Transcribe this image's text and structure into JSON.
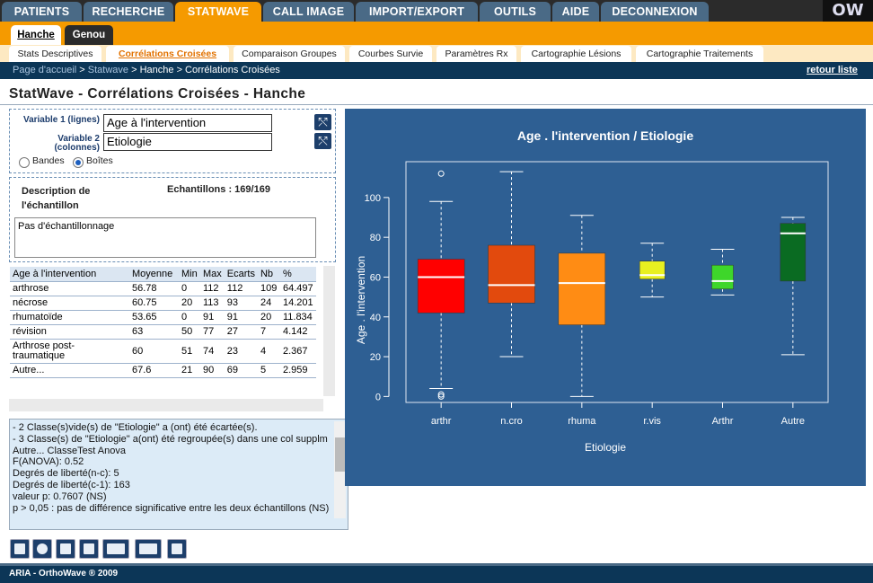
{
  "nav": {
    "tabs": [
      {
        "label": "PATIENTS",
        "active": false
      },
      {
        "label": "RECHERCHE",
        "active": false
      },
      {
        "label": "STATWAVE",
        "active": true
      },
      {
        "label": "CALL IMAGE",
        "active": false
      },
      {
        "label": "IMPORT/EXPORT",
        "active": false
      },
      {
        "label": "OUTILS",
        "active": false
      },
      {
        "label": "AIDE",
        "active": false
      },
      {
        "label": "DECONNEXION",
        "active": false
      }
    ],
    "logo": "OW"
  },
  "subtabs": [
    {
      "label": "Hanche",
      "active": true
    },
    {
      "label": "Genou",
      "active": false
    }
  ],
  "modules": [
    {
      "label": "Stats Descriptives",
      "active": false
    },
    {
      "label": "Corrélations Croisées",
      "active": true
    },
    {
      "label": "Comparaison Groupes",
      "active": false
    },
    {
      "label": "Courbes Survie",
      "active": false
    },
    {
      "label": "Paramètres Rx",
      "active": false
    },
    {
      "label": "Cartographie Lésions",
      "active": false
    },
    {
      "label": "Cartographie Traitements",
      "active": false
    }
  ],
  "breadcrumb": {
    "home": "Page d'accueil",
    "sep": ">",
    "statwave": "Statwave",
    "rest": "Hanche > Corrélations Croisées",
    "back": "retour liste"
  },
  "page_title": "StatWave - Corrélations Croisées - Hanche",
  "vars": {
    "v1_label": "Variable 1 (lignes)",
    "v1_value": "Age à l'intervention",
    "v2_label_a": "Variable 2",
    "v2_label_b": "(colonnes)",
    "v2_value": "Etiologie",
    "swap_glyph": "⤲",
    "radio_bandes": "Bandes",
    "radio_boites": "Boîtes"
  },
  "desc": {
    "title_a": "Description de",
    "title_b": "l'échantillon",
    "samples": "Echantillons : 169/169",
    "sampling": "Pas d'échantillonnage"
  },
  "table": {
    "headers": [
      "Age à l'intervention",
      "Moyenne",
      "Min",
      "Max",
      "Ecarts",
      "Nb",
      "%"
    ],
    "rows": [
      [
        "arthrose",
        "56.78",
        "0",
        "112",
        "112",
        "109",
        "64.497"
      ],
      [
        "nécrose",
        "60.75",
        "20",
        "113",
        "93",
        "24",
        "14.201"
      ],
      [
        "rhumatoïde",
        "53.65",
        "0",
        "91",
        "91",
        "20",
        "11.834"
      ],
      [
        "révision",
        "63",
        "50",
        "77",
        "27",
        "7",
        "4.142"
      ],
      [
        "Arthrose post-traumatique",
        "60",
        "51",
        "74",
        "23",
        "4",
        "2.367"
      ],
      [
        "Autre...",
        "67.6",
        "21",
        "90",
        "69",
        "5",
        "2.959"
      ]
    ]
  },
  "console": [
    "- 2 Classe(s)vide(s) de \"Etiologie\" a (ont) été écartée(s).",
    "- 3 Classe(s) de \"Etiologie\" a(ont) été regroupée(s) dans une col supplm Autre... ClasseTest Anova",
    "F(ANOVA): 0.52",
    "Degrés de liberté(n-c): 5",
    "Degrés de liberté(c-1): 163",
    "valeur p: 0.7607 (NS)",
    "p > 0,05 : pas de différence significative entre les deux échantillons (NS)"
  ],
  "footer": "ARIA - OrthoWave ® 2009",
  "colors": {
    "accent": "#f59a00",
    "nav": "#4a6a86",
    "dark": "#0c3657",
    "chart_bg": "#2e5f93"
  },
  "toolbar_icons": [
    "bar-chart-icon",
    "refresh-icon",
    "copy-icon",
    "clipboard-icon",
    "table-export-icon",
    "chart-export-icon",
    "print-icon"
  ],
  "chart_data": {
    "type": "boxplot",
    "title": "Age . l'intervention / Etiologie",
    "xlabel": "Etiologie",
    "ylabel": "Age . l'intervention",
    "ylim": [
      -3,
      118
    ],
    "yticks": [
      0,
      20,
      40,
      60,
      80,
      100
    ],
    "categories": [
      "arthr",
      "n.cro",
      "rhuma",
      "r.vis",
      "Arthr",
      "Autre"
    ],
    "series": [
      {
        "category": "arthr",
        "color": "#ff0000",
        "min": 4,
        "q1": 42,
        "median": 60,
        "q3": 69,
        "max": 98,
        "outliers": [
          112,
          0,
          1
        ]
      },
      {
        "category": "n.cro",
        "color": "#e24a0d",
        "min": 20,
        "q1": 47,
        "median": 56,
        "q3": 76,
        "max": 113,
        "outliers": []
      },
      {
        "category": "rhuma",
        "color": "#ff8c14",
        "min": 0,
        "q1": 36,
        "median": 57,
        "q3": 72,
        "max": 91,
        "outliers": []
      },
      {
        "category": "r.vis",
        "color": "#e8f020",
        "min": 50,
        "q1": 59,
        "median": 61,
        "q3": 68,
        "max": 77,
        "outliers": []
      },
      {
        "category": "Arthr",
        "color": "#3ed62a",
        "min": 51,
        "q1": 54,
        "median": 58,
        "q3": 66,
        "max": 74,
        "outliers": []
      },
      {
        "category": "Autre",
        "color": "#0a6b22",
        "min": 21,
        "q1": 58,
        "median": 82,
        "q3": 87,
        "max": 90,
        "outliers": []
      }
    ]
  }
}
